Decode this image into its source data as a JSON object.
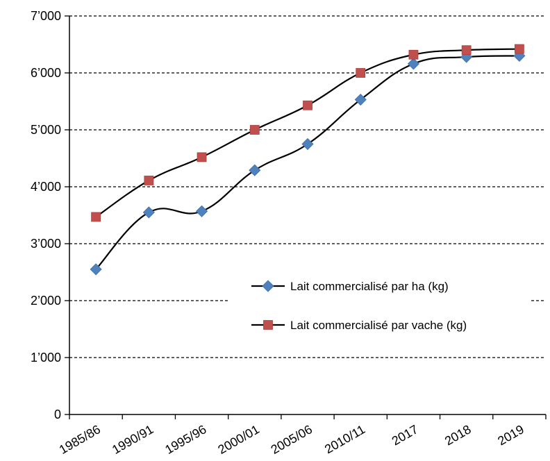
{
  "chart_data": {
    "type": "line",
    "title": "",
    "xlabel": "",
    "ylabel": "",
    "categories": [
      "1985/86",
      "1990/91",
      "1995/96",
      "2000/01",
      "2005/06",
      "2010/11",
      "2017",
      "2018",
      "2019"
    ],
    "ylim": [
      0,
      7000
    ],
    "y_ticks": [
      {
        "value": 0,
        "label": "0"
      },
      {
        "value": 1000,
        "label": "1’000"
      },
      {
        "value": 2000,
        "label": "2’000"
      },
      {
        "value": 3000,
        "label": "3’000"
      },
      {
        "value": 4000,
        "label": "4’000"
      },
      {
        "value": 5000,
        "label": "5’000"
      },
      {
        "value": 6000,
        "label": "6’000"
      },
      {
        "value": 7000,
        "label": "7’000"
      }
    ],
    "grid": "horizontal-dashed",
    "legend_position": "center-right",
    "series": [
      {
        "name": "Lait commercialisé par ha (kg)",
        "marker": "diamond",
        "color": "#4F81BD",
        "values": [
          2550,
          3550,
          3570,
          4290,
          4750,
          5530,
          6160,
          6280,
          6300
        ]
      },
      {
        "name": "Lait commercialisé par vache (kg)",
        "marker": "square",
        "color": "#C0504D",
        "values": [
          3470,
          4110,
          4520,
          5000,
          5430,
          6000,
          6320,
          6400,
          6420
        ]
      }
    ]
  }
}
